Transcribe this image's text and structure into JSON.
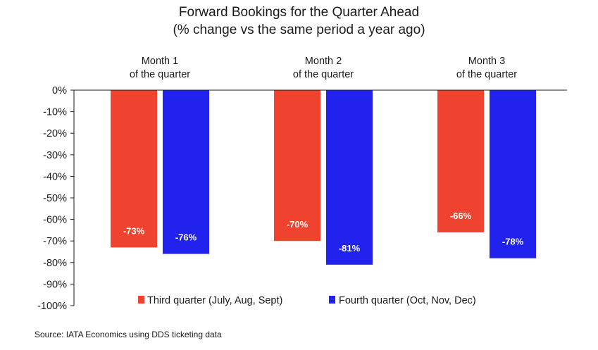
{
  "chart_data": {
    "type": "bar",
    "title": "Forward Bookings for the Quarter Ahead",
    "subtitle": "(% change vs the same period a year ago)",
    "categories": [
      [
        "Month 1",
        "of the quarter"
      ],
      [
        "Month 2",
        "of the quarter"
      ],
      [
        "Month 3",
        "of the quarter"
      ]
    ],
    "series": [
      {
        "name": "Third quarter (July, Aug, Sept)",
        "values": [
          -73,
          -70,
          -66
        ],
        "labels": [
          "-73%",
          "-70%",
          "-66%"
        ],
        "color": "#f0432f"
      },
      {
        "name": "Fourth quarter (Oct, Nov, Dec)",
        "values": [
          -76,
          -81,
          -78
        ],
        "labels": [
          "-76%",
          "-81%",
          "-78%"
        ],
        "color": "#2222ee"
      }
    ],
    "ylim": [
      -100,
      0
    ],
    "yticks": [
      "0%",
      "-10%",
      "-20%",
      "-30%",
      "-40%",
      "-50%",
      "-60%",
      "-70%",
      "-80%",
      "-90%",
      "-100%"
    ],
    "legend_position": "bottom-center",
    "grid": false,
    "source": "Source: IATA Economics using DDS ticketing data"
  }
}
